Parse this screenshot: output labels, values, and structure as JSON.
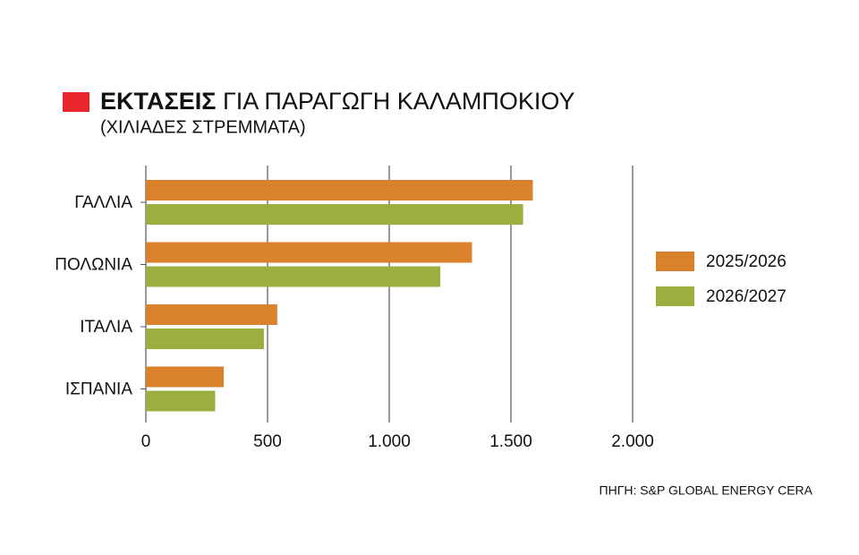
{
  "chart_data": {
    "type": "hbar",
    "title": [
      "ΕΚΤΑΣΕΙΣ",
      "ΓΙΑ ΠΑΡΑΓΩΓΗ ΚΑΛΑΜΠΟΚΙΟΥ"
    ],
    "subtitle": "(ΧΙΛΙΑΔΕΣ ΣΤΡΕΜΜΑΤΑ)",
    "source": "ΠΗΓΗ: S&P GLOBAL ENERGY CERA",
    "categories": [
      "ΓΑΛΛΙΑ",
      "ΠΟΛΩΝΙΑ",
      "ΙΤΑΛΙΑ",
      "ΙΣΠΑΝΙΑ"
    ],
    "series": [
      {
        "name": "2025/2026",
        "color": "#d9822b",
        "values": [
          1590,
          1340,
          540,
          320
        ]
      },
      {
        "name": "2026/2027",
        "color": "#9aaf3d",
        "values": [
          1550,
          1210,
          485,
          285
        ]
      }
    ],
    "xlim": [
      0,
      2000
    ],
    "xticks": [
      0,
      500,
      {
        "value": 1000,
        "label": "1.000"
      },
      {
        "value": 1500,
        "label": "1.500"
      },
      {
        "value": 2000,
        "label": "2.000"
      }
    ],
    "grid": true,
    "legend": "right"
  }
}
